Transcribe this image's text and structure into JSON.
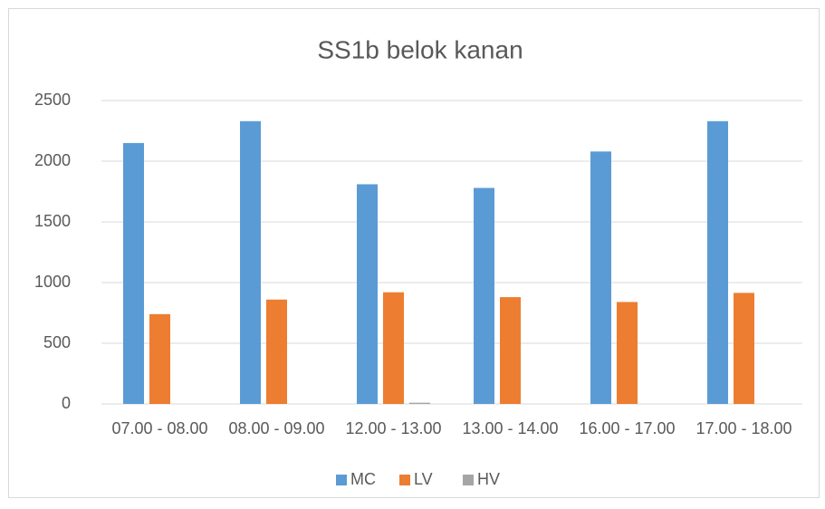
{
  "chart_data": {
    "type": "bar",
    "title": "SS1b belok kanan",
    "categories": [
      "07.00 - 08.00",
      "08.00 - 09.00",
      "12.00 - 13.00",
      "13.00 - 14.00",
      "16.00 - 17.00",
      "17.00 - 18.00"
    ],
    "series": [
      {
        "name": "MC",
        "color": "#5b9bd5",
        "values": [
          2150,
          2330,
          1810,
          1780,
          2080,
          2330
        ]
      },
      {
        "name": "LV",
        "color": "#ed7d31",
        "values": [
          740,
          860,
          920,
          880,
          840,
          915
        ]
      },
      {
        "name": "HV",
        "color": "#a5a5a5",
        "values": [
          0,
          0,
          10,
          0,
          0,
          0
        ]
      }
    ],
    "ylim": [
      0,
      2500
    ],
    "yticks": [
      0,
      500,
      1000,
      1500,
      2000,
      2500
    ],
    "grid": true,
    "legend": "bottom"
  }
}
